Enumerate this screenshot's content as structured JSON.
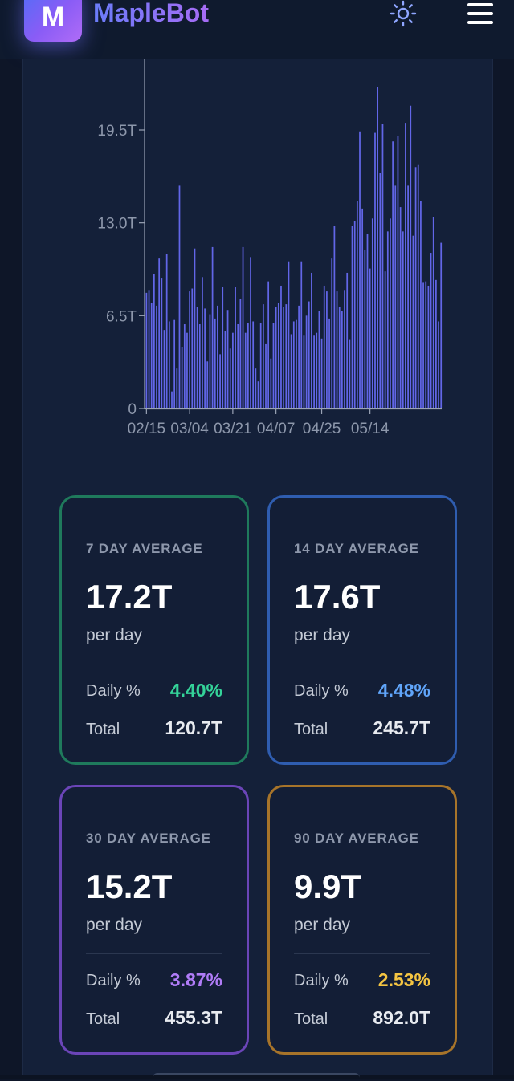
{
  "header": {
    "logo_letter": "M",
    "brand": "MapleBot",
    "theme_icon": "sun-icon",
    "menu_icon": "hamburger-menu-icon"
  },
  "chart_data": {
    "type": "bar",
    "title": "",
    "xlabel": "",
    "ylabel": "",
    "ylim": [
      0,
      25
    ],
    "yticks": [
      {
        "value": 0,
        "label": "0"
      },
      {
        "value": 6.5,
        "label": "6.5T"
      },
      {
        "value": 13.0,
        "label": "13.0T"
      },
      {
        "value": 19.5,
        "label": "19.5T"
      }
    ],
    "xticks": [
      {
        "index": 0,
        "label": "02/15"
      },
      {
        "index": 17,
        "label": "03/04"
      },
      {
        "index": 34,
        "label": "03/21"
      },
      {
        "index": 51,
        "label": "04/07"
      },
      {
        "index": 69,
        "label": "04/25"
      },
      {
        "index": 88,
        "label": "05/14"
      }
    ],
    "color": "#6266e8",
    "values": [
      8.1,
      8.3,
      7.4,
      9.4,
      7.2,
      10.5,
      9.1,
      5.5,
      10.8,
      6.1,
      1.2,
      6.2,
      2.8,
      15.6,
      4.3,
      5.9,
      5.3,
      8.2,
      8.4,
      11.2,
      7.1,
      5.9,
      9.2,
      7.0,
      3.3,
      6.6,
      11.3,
      6.3,
      7.2,
      3.8,
      8.5,
      5.4,
      6.9,
      4.2,
      5.3,
      8.5,
      5.9,
      7.7,
      11.3,
      5.3,
      6.0,
      10.6,
      6.1,
      2.8,
      1.9,
      6.0,
      7.3,
      4.5,
      8.9,
      3.5,
      6.0,
      7.1,
      7.4,
      8.6,
      7.1,
      7.3,
      10.3,
      5.2,
      6.1,
      6.2,
      7.2,
      10.3,
      5.1,
      6.5,
      7.5,
      9.5,
      5.1,
      5.3,
      6.8,
      4.9,
      8.6,
      8.2,
      6.3,
      10.5,
      12.8,
      8.2,
      7.1,
      6.8,
      8.3,
      9.5,
      4.8,
      12.8,
      13.1,
      14.5,
      19.4,
      14.0,
      11.1,
      12.2,
      9.8,
      13.3,
      19.3,
      22.5,
      16.5,
      19.9,
      9.6,
      12.4,
      13.3,
      18.7,
      15.6,
      19.1,
      14.1,
      12.4,
      20.0,
      15.6,
      21.2,
      12.1,
      16.9,
      17.1,
      14.5,
      8.8,
      8.9,
      8.6,
      10.9,
      13.4,
      9.0,
      6.1,
      11.6
    ]
  },
  "cards": [
    {
      "label": "7 DAY AVERAGE",
      "value": "17.2T",
      "unit": "per day",
      "daily_label": "Daily %",
      "daily_value": "4.40%",
      "total_label": "Total",
      "total_value": "120.7T",
      "border": "#1f7a5c",
      "accent": "#34d399"
    },
    {
      "label": "14 DAY AVERAGE",
      "value": "17.6T",
      "unit": "per day",
      "daily_label": "Daily %",
      "daily_value": "4.48%",
      "total_label": "Total",
      "total_value": "245.7T",
      "border": "#2f5db0",
      "accent": "#60a5fa"
    },
    {
      "label": "30 DAY AVERAGE",
      "value": "15.2T",
      "unit": "per day",
      "daily_label": "Daily %",
      "daily_value": "3.87%",
      "total_label": "Total",
      "total_value": "455.3T",
      "border": "#6b45b8",
      "accent": "#b07cf7"
    },
    {
      "label": "90 DAY AVERAGE",
      "value": "9.9T",
      "unit": "per day",
      "daily_label": "Daily %",
      "daily_value": "2.53%",
      "total_label": "Total",
      "total_value": "892.0T",
      "border": "#a7742a",
      "accent": "#f5c542"
    }
  ]
}
